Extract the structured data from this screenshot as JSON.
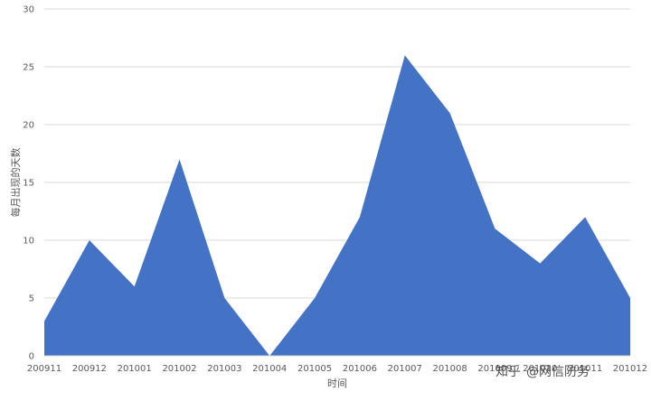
{
  "chart_data": {
    "type": "area",
    "title": "",
    "xlabel": "时间",
    "ylabel": "每月出现的天数",
    "categories": [
      "200911",
      "200912",
      "201001",
      "201002",
      "201003",
      "201004",
      "201005",
      "201006",
      "201007",
      "201008",
      "201009",
      "201010",
      "201011",
      "201012"
    ],
    "series": [
      {
        "values": [
          3,
          10,
          6,
          17,
          5,
          0,
          5,
          12,
          26,
          21,
          11,
          8,
          12,
          5
        ]
      }
    ],
    "ylim": [
      0,
      30
    ],
    "yticks": [
      0,
      5,
      10,
      15,
      20,
      25,
      30
    ],
    "grid": true,
    "legend": "none",
    "colors": {
      "area": "#4472C4",
      "grid": "#D9D9D9",
      "text": "#595959"
    }
  },
  "watermark": {
    "platform": "知乎",
    "handle": "@网信防务"
  }
}
